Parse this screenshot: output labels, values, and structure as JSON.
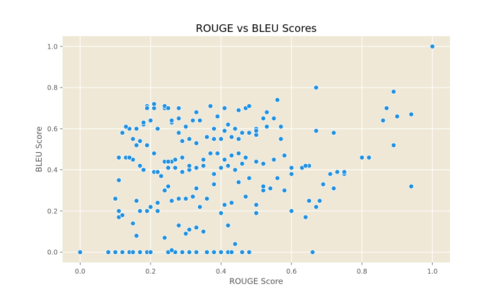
{
  "chart_data": {
    "type": "scatter",
    "title": "ROUGE vs BLEU Scores",
    "xlabel": "ROUGE Score",
    "ylabel": "BLEU Score",
    "xlim": [
      -0.05,
      1.05
    ],
    "ylim": [
      -0.05,
      1.05
    ],
    "xticks": [
      0.0,
      0.2,
      0.4,
      0.6,
      0.8,
      1.0
    ],
    "yticks": [
      0.0,
      0.2,
      0.4,
      0.6,
      0.8,
      1.0
    ],
    "xtick_labels": [
      "0.0",
      "0.2",
      "0.4",
      "0.6",
      "0.8",
      "1.0"
    ],
    "ytick_labels": [
      "0.0",
      "0.2",
      "0.4",
      "0.6",
      "0.8",
      "1.0"
    ],
    "grid": true,
    "background_color": "#efe8d6",
    "point_color": "#1f8fde",
    "x": [
      0.0,
      0.08,
      0.1,
      0.12,
      0.14,
      0.15,
      0.17,
      0.19,
      0.2,
      0.25,
      0.27,
      0.29,
      0.31,
      0.33,
      0.36,
      0.4,
      0.42,
      0.43,
      0.48,
      0.1,
      0.11,
      0.11,
      0.12,
      0.15,
      0.16,
      0.17,
      0.19,
      0.2,
      0.22,
      0.24,
      0.26,
      0.28,
      0.3,
      0.31,
      0.33,
      0.35,
      0.38,
      0.4,
      0.42,
      0.44,
      0.46,
      0.5,
      0.16,
      0.2,
      0.22,
      0.24,
      0.25,
      0.26,
      0.28,
      0.3,
      0.32,
      0.33,
      0.34,
      0.36,
      0.38,
      0.41,
      0.43,
      0.45,
      0.47,
      0.5,
      0.52,
      0.54,
      0.58,
      0.6,
      0.11,
      0.13,
      0.15,
      0.17,
      0.18,
      0.21,
      0.23,
      0.25,
      0.26,
      0.27,
      0.29,
      0.31,
      0.33,
      0.35,
      0.38,
      0.4,
      0.42,
      0.44,
      0.46,
      0.48,
      0.52,
      0.56,
      0.6,
      0.64,
      0.65,
      0.67,
      0.69,
      0.71,
      0.73,
      0.75,
      0.11,
      0.14,
      0.16,
      0.19,
      0.21,
      0.22,
      0.24,
      0.25,
      0.27,
      0.29,
      0.31,
      0.33,
      0.35,
      0.37,
      0.39,
      0.41,
      0.43,
      0.45,
      0.47,
      0.5,
      0.52,
      0.55,
      0.58,
      0.6,
      0.63,
      0.65,
      0.68,
      0.72,
      0.75,
      0.8,
      0.82,
      0.12,
      0.14,
      0.16,
      0.18,
      0.2,
      0.22,
      0.26,
      0.28,
      0.3,
      0.32,
      0.34,
      0.38,
      0.42,
      0.44,
      0.46,
      0.5,
      0.53,
      0.57,
      0.13,
      0.15,
      0.17,
      0.18,
      0.19,
      0.21,
      0.24,
      0.26,
      0.28,
      0.29,
      0.31,
      0.33,
      0.36,
      0.38,
      0.4,
      0.41,
      0.43,
      0.45,
      0.48,
      0.5,
      0.52,
      0.56,
      0.64,
      0.67,
      0.72,
      0.86,
      0.89,
      0.19,
      0.21,
      0.24,
      0.25,
      0.28,
      0.33,
      0.37,
      0.39,
      0.41,
      0.45,
      0.47,
      0.48,
      0.5,
      0.53,
      0.55,
      0.57,
      0.67,
      0.87,
      0.89,
      0.9,
      0.94,
      0.66,
      0.94,
      1.0
    ],
    "y": [
      0.0,
      0.0,
      0.0,
      0.0,
      0.0,
      0.0,
      0.0,
      0.0,
      0.0,
      0.0,
      0.0,
      0.0,
      0.0,
      0.0,
      0.0,
      0.0,
      0.0,
      0.0,
      0.0,
      0.26,
      0.2,
      0.17,
      0.18,
      0.14,
      0.08,
      0.2,
      0.2,
      0.22,
      0.2,
      0.07,
      0.01,
      0.13,
      0.09,
      0.11,
      0.12,
      0.1,
      0.0,
      0.19,
      0.13,
      0.04,
      0.0,
      0.19,
      0.25,
      0.22,
      0.24,
      0.3,
      0.32,
      0.25,
      0.26,
      0.26,
      0.27,
      0.31,
      0.22,
      0.26,
      0.33,
      0.23,
      0.24,
      0.34,
      0.27,
      0.23,
      0.3,
      0.31,
      0.3,
      0.2,
      0.35,
      0.46,
      0.45,
      0.42,
      0.4,
      0.39,
      0.37,
      0.41,
      0.44,
      0.41,
      0.39,
      0.4,
      0.41,
      0.42,
      0.38,
      0.41,
      0.42,
      0.4,
      0.43,
      0.36,
      0.32,
      0.36,
      0.38,
      0.17,
      0.42,
      0.22,
      0.33,
      0.38,
      0.39,
      0.38,
      0.46,
      0.46,
      0.52,
      0.52,
      0.48,
      0.39,
      0.44,
      0.44,
      0.45,
      0.46,
      0.42,
      0.41,
      0.45,
      0.48,
      0.48,
      0.45,
      0.47,
      0.48,
      0.46,
      0.44,
      0.43,
      0.45,
      0.47,
      0.41,
      0.41,
      0.25,
      0.25,
      0.31,
      0.39,
      0.46,
      0.46,
      0.58,
      0.6,
      0.6,
      0.62,
      0.64,
      0.6,
      0.63,
      0.65,
      0.61,
      0.64,
      0.64,
      0.6,
      0.62,
      0.6,
      0.58,
      0.6,
      0.61,
      0.55,
      0.61,
      0.55,
      0.54,
      0.63,
      0.71,
      0.7,
      0.7,
      0.64,
      0.58,
      0.54,
      0.55,
      0.53,
      0.56,
      0.55,
      0.55,
      0.59,
      0.56,
      0.55,
      0.58,
      0.57,
      0.65,
      0.74,
      0.42,
      0.59,
      0.58,
      0.64,
      0.78,
      0.7,
      0.72,
      0.71,
      0.7,
      0.7,
      0.68,
      0.71,
      0.66,
      0.7,
      0.69,
      0.7,
      0.71,
      0.59,
      0.68,
      0.65,
      0.61,
      0.8,
      0.7,
      0.52,
      0.66,
      0.67,
      0.0,
      0.32,
      1.0
    ]
  }
}
